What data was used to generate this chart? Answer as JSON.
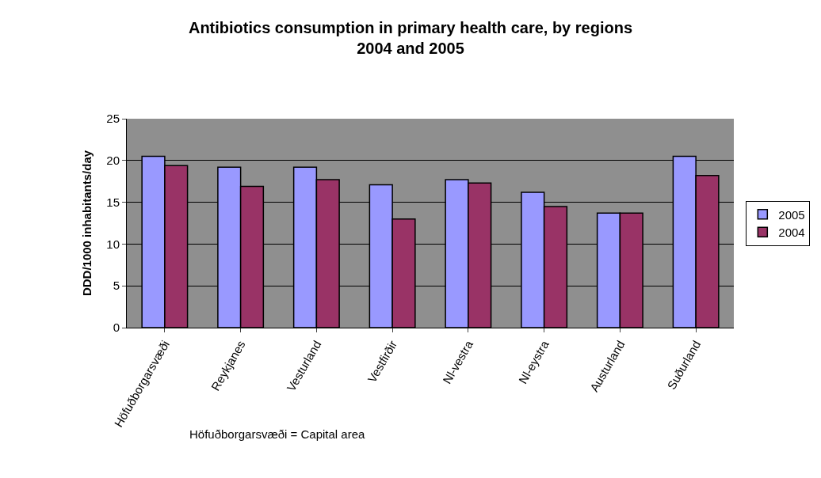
{
  "chart_data": {
    "type": "bar",
    "title": "Antibiotics consumption in primary health care, by regions\n2004 and 2005",
    "ylabel": "DDD/1000 inhabitants/day",
    "categories": [
      "Höfuðborgarsvæði",
      "Reykjanes",
      "Vesturland",
      "Vestfirðir",
      "Nl-vestra",
      "Nl-eystra",
      "Austurland",
      "Suðurland"
    ],
    "series": [
      {
        "name": "2005",
        "color": "#9999ff",
        "values": [
          20.5,
          19.2,
          19.2,
          17.1,
          17.7,
          16.2,
          13.7,
          20.5
        ]
      },
      {
        "name": "2004",
        "color": "#993366",
        "values": [
          19.4,
          16.9,
          17.7,
          13.0,
          17.3,
          14.5,
          13.7,
          18.2
        ]
      }
    ],
    "ylim": [
      0,
      25
    ],
    "yticks": [
      0,
      5,
      10,
      15,
      20,
      25
    ],
    "grid": "y",
    "legend": "right",
    "annotations": [
      "Höfuðborgarsvæði = Capital area"
    ]
  }
}
